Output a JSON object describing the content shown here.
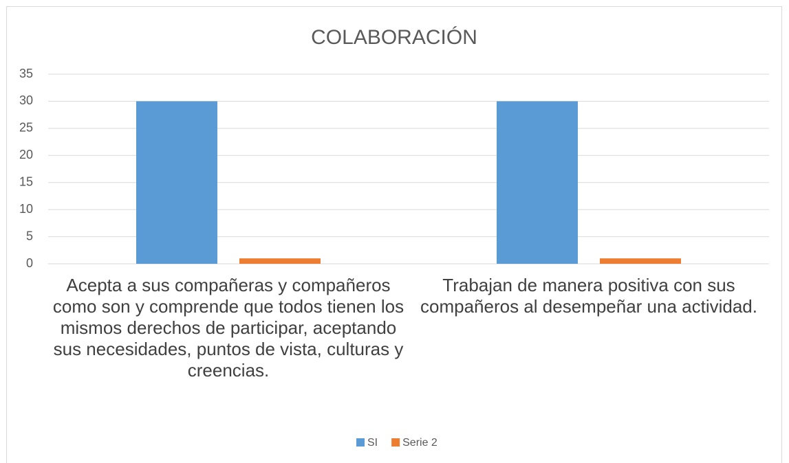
{
  "chart_data": {
    "type": "bar",
    "title": "COLABORACIÓN",
    "categories": [
      "Acepta a sus compañeras y compañeros como son y comprende que todos tienen los mismos derechos de participar, aceptando sus necesidades, puntos de vista, culturas y creencias.",
      "Trabajan de manera positiva con sus compañeros al desempeñar una actividad."
    ],
    "series": [
      {
        "name": "SI",
        "color": "#5b9bd5",
        "values": [
          30,
          30
        ]
      },
      {
        "name": "Serie 2",
        "color": "#ed7d31",
        "values": [
          1,
          1
        ]
      }
    ],
    "ylim": [
      0,
      35
    ],
    "yticks": [
      0,
      5,
      10,
      15,
      20,
      25,
      30,
      35
    ],
    "grid": true,
    "legend": "bottom"
  }
}
